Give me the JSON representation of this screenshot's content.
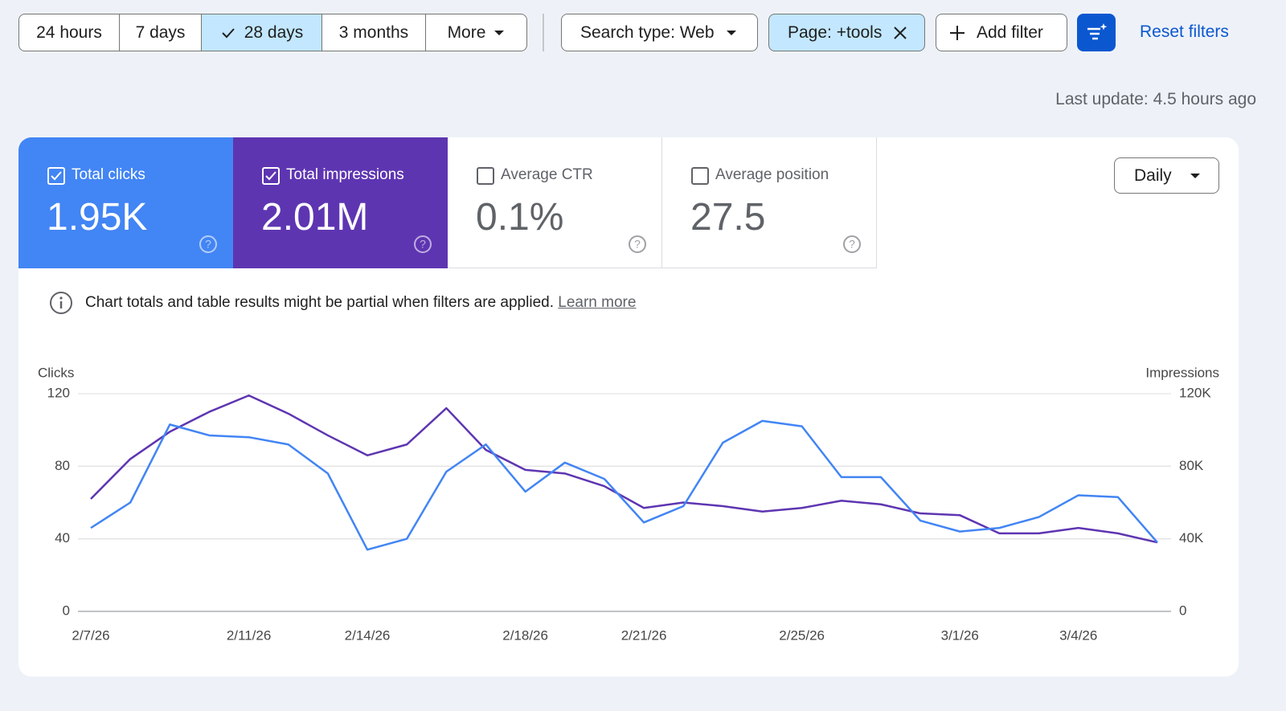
{
  "toolbar": {
    "time_range": {
      "options": [
        "24 hours",
        "7 days",
        "28 days",
        "3 months",
        "More"
      ],
      "selected": 2
    },
    "search_type": "Search type: Web",
    "page_filter": "Page: +tools",
    "add_filter": "Add filter",
    "reset": "Reset filters"
  },
  "last_update": "Last update: 4.5 hours ago",
  "metrics": [
    {
      "label": "Total clicks",
      "value": "1.95K",
      "checked": true,
      "color": "#4285f4"
    },
    {
      "label": "Total impressions",
      "value": "2.01M",
      "checked": true,
      "color": "#5e35b1"
    },
    {
      "label": "Average CTR",
      "value": "0.1%",
      "checked": false
    },
    {
      "label": "Average position",
      "value": "27.5",
      "checked": false
    }
  ],
  "granularity": "Daily",
  "notice": {
    "text": "Chart totals and table results might be partial when filters are applied.",
    "link": "Learn more"
  },
  "chart_data": {
    "type": "line",
    "categories": [
      "2/7/26",
      null,
      null,
      null,
      "2/11/26",
      null,
      null,
      "2/14/26",
      null,
      null,
      null,
      "2/18/26",
      null,
      null,
      "2/21/26",
      null,
      null,
      null,
      "2/25/26",
      null,
      null,
      null,
      "3/1/26",
      null,
      null,
      "3/4/26",
      null,
      null
    ],
    "series": [
      {
        "name": "Clicks",
        "color": "#4285f4",
        "values": [
          46,
          60,
          103,
          97,
          96,
          92,
          76,
          34,
          40,
          77,
          92,
          66,
          82,
          73,
          49,
          58,
          93,
          105,
          102,
          74,
          74,
          50,
          44,
          46,
          52,
          64,
          63,
          38
        ]
      },
      {
        "name": "Impressions",
        "color": "#5e35b1",
        "axis": "y2",
        "values": [
          62000,
          84000,
          99000,
          110000,
          119000,
          109000,
          97000,
          86000,
          92000,
          112000,
          89000,
          78000,
          76000,
          69000,
          57000,
          60000,
          58000,
          55000,
          57000,
          61000,
          59000,
          54000,
          53000,
          43000,
          43000,
          46000,
          43000,
          38000
        ]
      }
    ],
    "ylim": [
      0,
      120
    ],
    "yticks": [
      0,
      40,
      80,
      120
    ],
    "y2lim": [
      0,
      120000
    ],
    "y2ticks": [
      {
        "value": 0,
        "label": "0"
      },
      {
        "value": 40000,
        "label": "40K"
      },
      {
        "value": 80000,
        "label": "80K"
      },
      {
        "value": 120000,
        "label": "120K"
      }
    ],
    "grid": true
  }
}
